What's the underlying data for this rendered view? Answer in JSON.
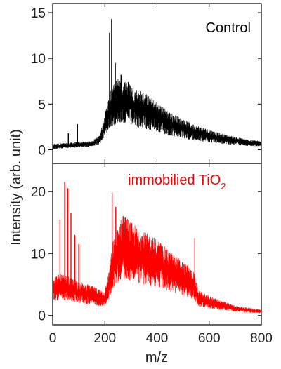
{
  "chart_data": [
    {
      "type": "line",
      "label": "Control",
      "color": "#000000",
      "xlabel": "m/z",
      "ylabel": "Intensity (arb. unit)",
      "xlim": [
        0,
        800
      ],
      "ylim": [
        -1.5,
        16
      ],
      "xticks": [
        0,
        200,
        400,
        600,
        800
      ],
      "yticks": [
        0,
        5,
        10,
        15
      ],
      "x": [
        0,
        50,
        100,
        150,
        180,
        200,
        220,
        250,
        280,
        300,
        320,
        350,
        400,
        450,
        500,
        550,
        600,
        650,
        700,
        750,
        800
      ],
      "y": [
        0.3,
        0.4,
        0.5,
        0.6,
        1.0,
        2.5,
        4.0,
        5.0,
        4.8,
        4.5,
        4.2,
        4.0,
        3.3,
        2.6,
        2.1,
        1.7,
        1.4,
        1.1,
        0.9,
        0.7,
        0.6
      ],
      "peaks": [
        {
          "x": 226,
          "y": 14.3
        },
        {
          "x": 218,
          "y": 12.8
        },
        {
          "x": 240,
          "y": 9.5
        },
        {
          "x": 262,
          "y": 8.2
        },
        {
          "x": 290,
          "y": 7.4
        },
        {
          "x": 340,
          "y": 5.3
        },
        {
          "x": 95,
          "y": 2.8
        },
        {
          "x": 60,
          "y": 1.8
        }
      ]
    },
    {
      "type": "line",
      "label": "immobilied TiO",
      "label_subscript": "2",
      "color": "#ff0000",
      "xlabel": "m/z",
      "xlim": [
        0,
        800
      ],
      "ylim": [
        -1.5,
        24.5
      ],
      "xticks": [
        0,
        200,
        400,
        600,
        800
      ],
      "yticks": [
        0,
        10,
        20
      ],
      "x": [
        0,
        30,
        60,
        100,
        150,
        200,
        215,
        230,
        260,
        280,
        300,
        350,
        400,
        450,
        500,
        540,
        560,
        600,
        650,
        700,
        750,
        800
      ],
      "y": [
        4.0,
        4.2,
        4.0,
        3.5,
        3.0,
        2.5,
        4.5,
        7.5,
        9.8,
        10.2,
        9.5,
        8.5,
        7.8,
        6.5,
        5.5,
        4.5,
        2.5,
        2.0,
        1.5,
        1.0,
        0.8,
        0.6
      ],
      "peaks": [
        {
          "x": 46,
          "y": 21.5
        },
        {
          "x": 58,
          "y": 20.5
        },
        {
          "x": 28,
          "y": 15.5
        },
        {
          "x": 70,
          "y": 16.5
        },
        {
          "x": 85,
          "y": 13.0
        },
        {
          "x": 100,
          "y": 11.5
        },
        {
          "x": 228,
          "y": 19.8
        },
        {
          "x": 242,
          "y": 17.5
        },
        {
          "x": 270,
          "y": 16.0
        },
        {
          "x": 285,
          "y": 14.0
        },
        {
          "x": 545,
          "y": 12.5
        }
      ]
    }
  ]
}
